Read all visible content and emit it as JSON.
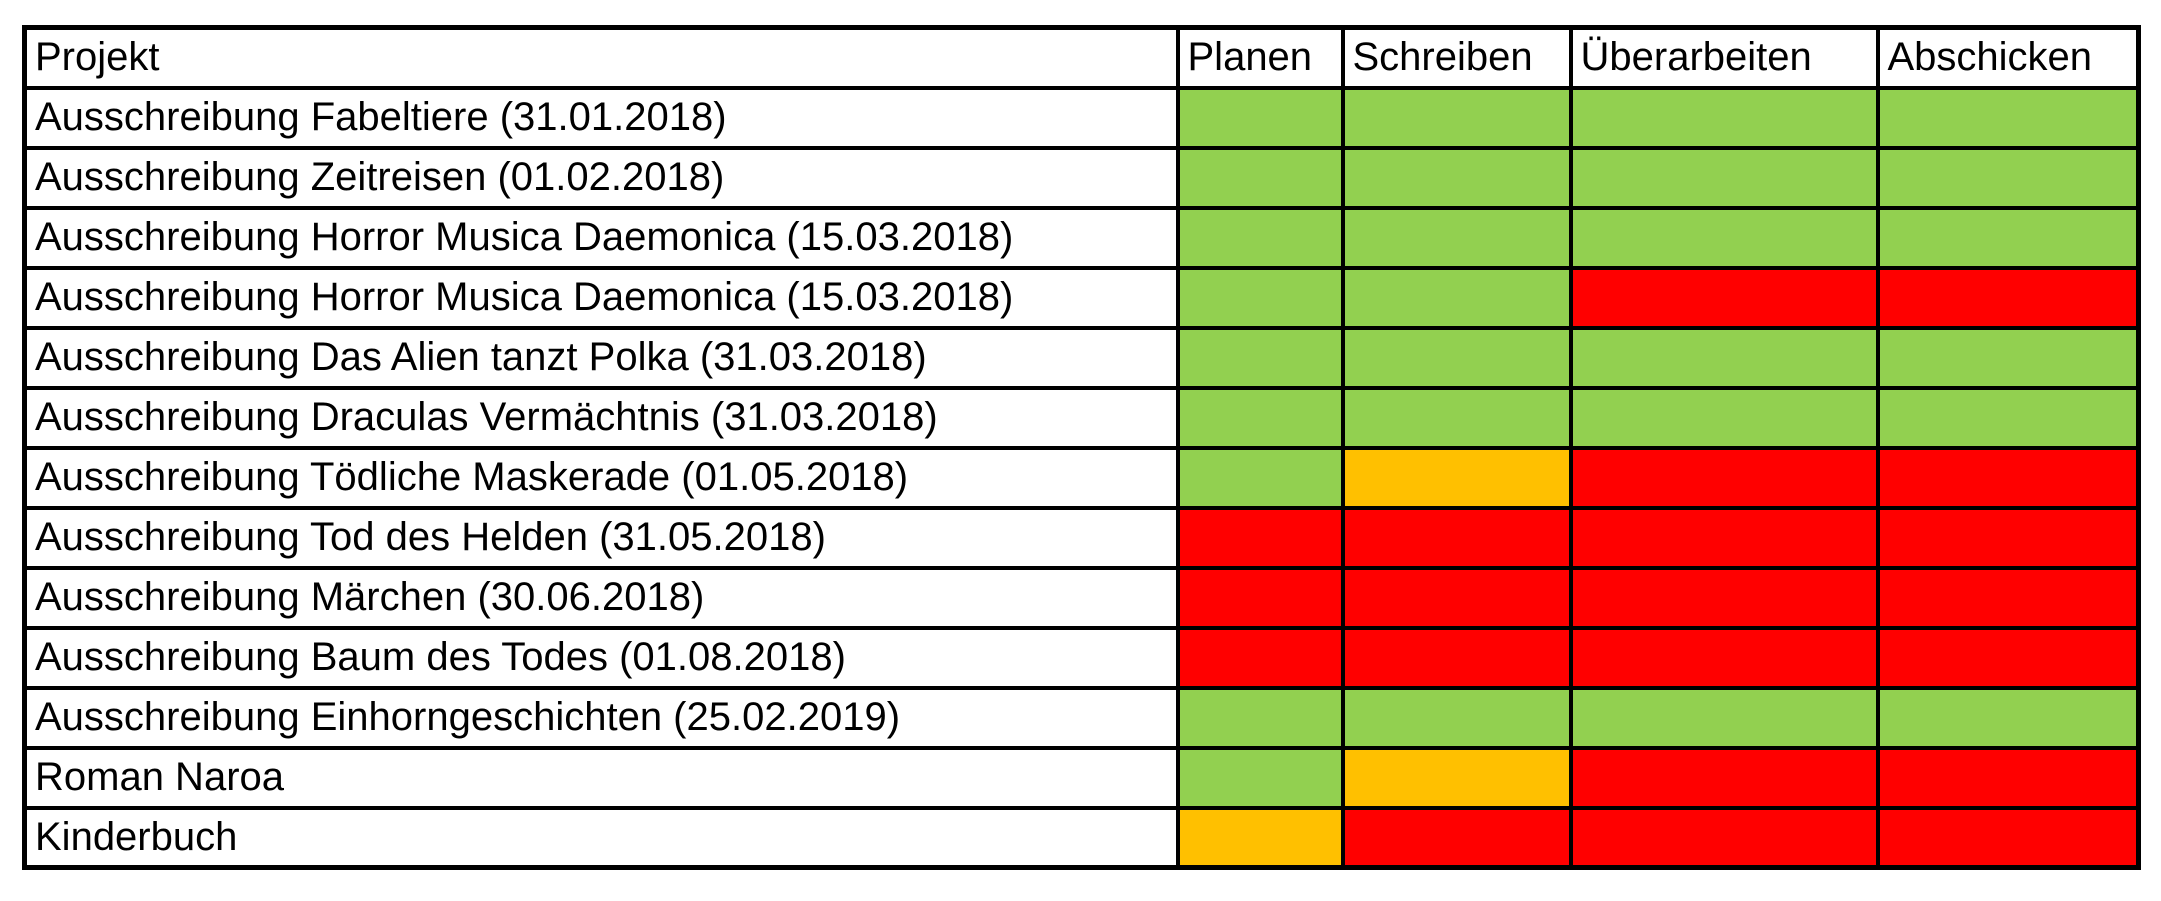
{
  "colors": {
    "green": "#92D050",
    "orange": "#FFC000",
    "red": "#FF0000",
    "border": "#000000",
    "background": "#FFFFFF",
    "text": "#000000"
  },
  "table": {
    "columns": [
      {
        "key": "projekt",
        "label": "Projekt"
      },
      {
        "key": "planen",
        "label": "Planen"
      },
      {
        "key": "schreiben",
        "label": "Schreiben"
      },
      {
        "key": "ueberarbeiten",
        "label": "Überarbeiten"
      },
      {
        "key": "abschicken",
        "label": "Abschicken"
      }
    ],
    "rows": [
      {
        "project": "Ausschreibung Fabeltiere (31.01.2018)",
        "statuses": [
          "green",
          "green",
          "green",
          "green"
        ]
      },
      {
        "project": "Ausschreibung Zeitreisen (01.02.2018)",
        "statuses": [
          "green",
          "green",
          "green",
          "green"
        ]
      },
      {
        "project": "Ausschreibung Horror Musica Daemonica (15.03.2018)",
        "statuses": [
          "green",
          "green",
          "green",
          "green"
        ]
      },
      {
        "project": "Ausschreibung Horror Musica Daemonica (15.03.2018)",
        "statuses": [
          "green",
          "green",
          "red",
          "red"
        ]
      },
      {
        "project": "Ausschreibung Das Alien tanzt Polka (31.03.2018)",
        "statuses": [
          "green",
          "green",
          "green",
          "green"
        ]
      },
      {
        "project": "Ausschreibung Draculas Vermächtnis (31.03.2018)",
        "statuses": [
          "green",
          "green",
          "green",
          "green"
        ]
      },
      {
        "project": "Ausschreibung Tödliche Maskerade (01.05.2018)",
        "statuses": [
          "green",
          "orange",
          "red",
          "red"
        ]
      },
      {
        "project": "Ausschreibung Tod des Helden (31.05.2018)",
        "statuses": [
          "red",
          "red",
          "red",
          "red"
        ]
      },
      {
        "project": "Ausschreibung Märchen (30.06.2018)",
        "statuses": [
          "red",
          "red",
          "red",
          "red"
        ]
      },
      {
        "project": "Ausschreibung Baum des Todes (01.08.2018)",
        "statuses": [
          "red",
          "red",
          "red",
          "red"
        ]
      },
      {
        "project": "Ausschreibung Einhorngeschichten (25.02.2019)",
        "statuses": [
          "green",
          "green",
          "green",
          "green"
        ]
      },
      {
        "project": "Roman Naroa",
        "statuses": [
          "green",
          "orange",
          "red",
          "red"
        ]
      },
      {
        "project": "Kinderbuch",
        "statuses": [
          "orange",
          "red",
          "red",
          "red"
        ]
      }
    ]
  }
}
